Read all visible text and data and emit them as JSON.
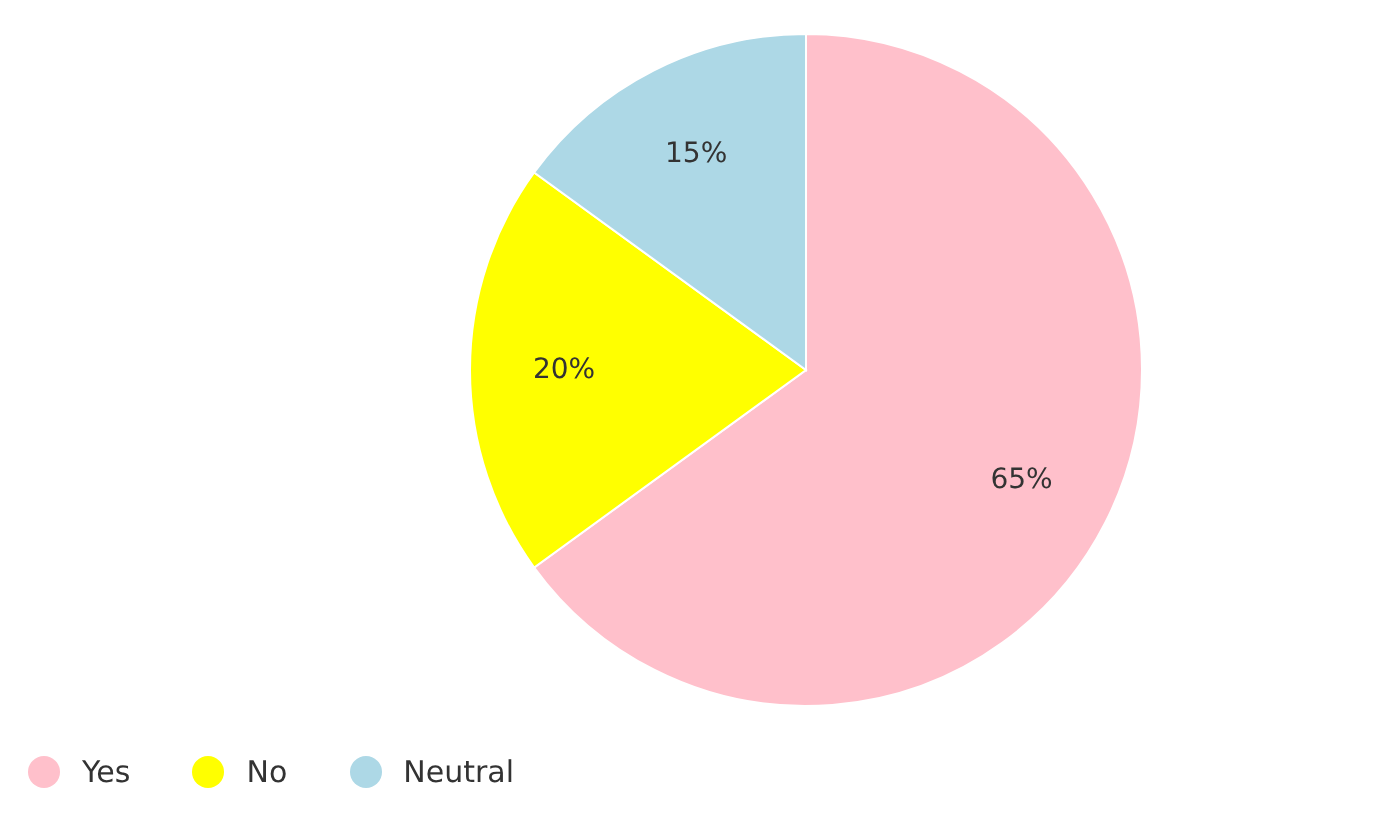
{
  "chart_data": {
    "type": "pie",
    "categories": [
      "Yes",
      "No",
      "Neutral"
    ],
    "values": [
      65,
      20,
      15
    ],
    "value_labels": [
      "65%",
      "20%",
      "15%"
    ],
    "colors": [
      "#ffc0cb",
      "#ffff00",
      "#add8e6"
    ],
    "legend": "bottom left"
  }
}
